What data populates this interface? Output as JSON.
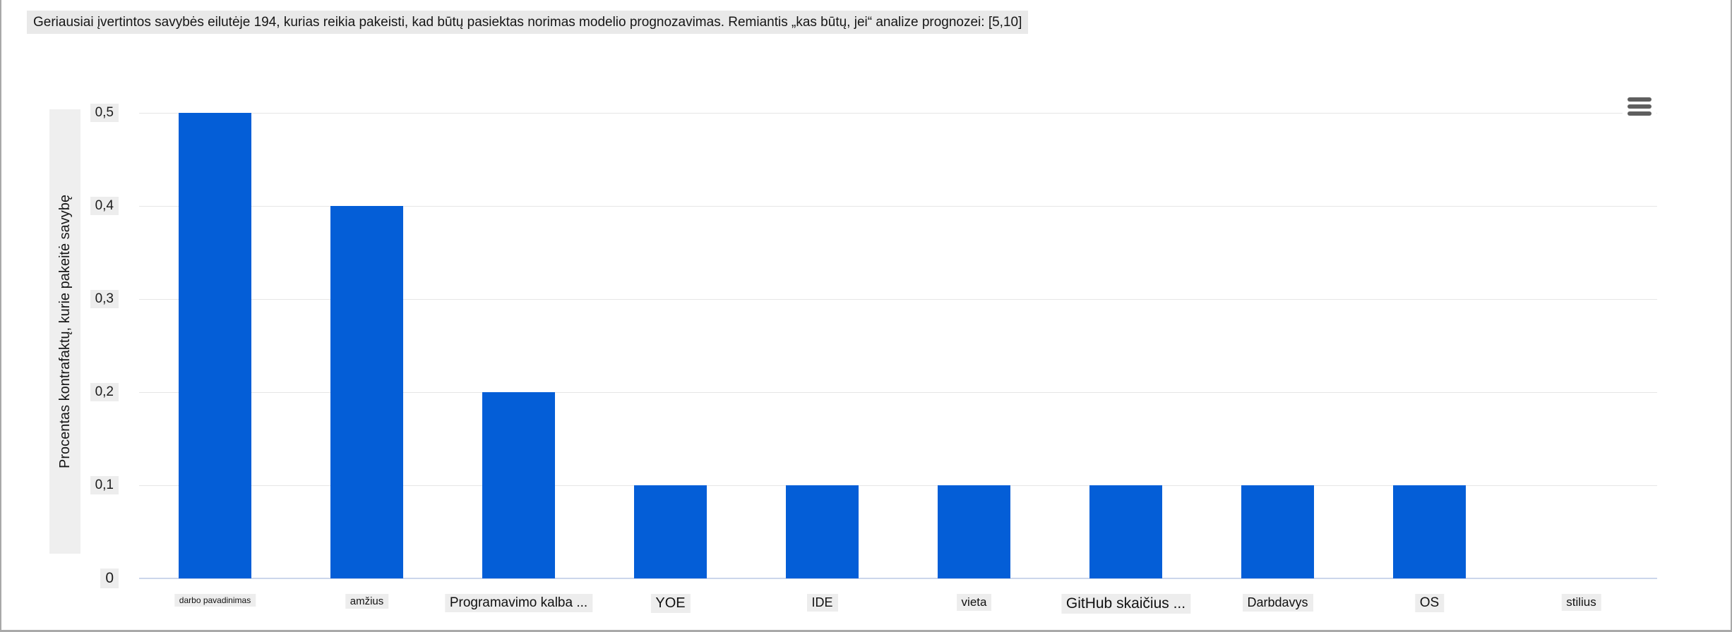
{
  "header": {
    "title": "Geriausiai įvertintos savybės eilutėje 194, kurias reikia pakeisti, kad būtų pasiektas norimas modelio prognozavimas. Remiantis „kas būtų, jei“ analize prognozei: [5,10]"
  },
  "toolbar": {
    "context_menu_icon": "hamburger-menu-icon"
  },
  "chart_data": {
    "type": "bar",
    "title": "",
    "categories": [
      "darbo pavadinimas",
      "amžius",
      "Programavimo kalba ...",
      "YOE",
      "IDE",
      "vieta",
      "GitHub skaičius ...",
      "Darbdavys",
      "OS",
      "stilius"
    ],
    "values": [
      0.5,
      0.4,
      0.2,
      0.1,
      0.1,
      0.1,
      0.1,
      0.1,
      0.1,
      0
    ],
    "xlabel": "",
    "ylabel": "Procentas kontrafaktų, kurie pakeitė savybę",
    "ylim": [
      0,
      0.5
    ],
    "ytick_values": [
      0,
      0.1,
      0.2,
      0.3,
      0.4,
      0.5
    ],
    "ytick_labels": [
      "0",
      "0,1",
      "0,2",
      "0,3",
      "0,4",
      "0,5"
    ],
    "decimal_separator": ",",
    "grid": "horizontal gridlines on",
    "legend": "none",
    "bar_color": "#045ed7"
  }
}
